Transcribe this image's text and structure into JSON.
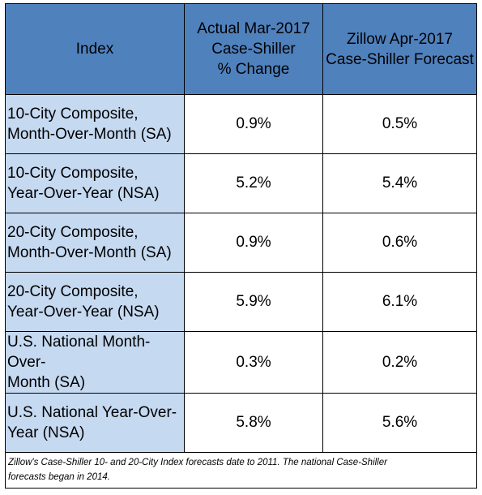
{
  "table": {
    "headers": {
      "index": "Index",
      "actual": [
        "Actual Mar-2017",
        "Case-Shiller",
        "% Change"
      ],
      "forecast": [
        "Zillow Apr-2017",
        "Case-Shiller Forecast"
      ]
    },
    "rows": [
      {
        "index": [
          "10-City Composite,",
          "Month-Over-Month (SA)"
        ],
        "actual": "0.9%",
        "forecast": "0.5%"
      },
      {
        "index": [
          "10-City Composite,",
          "Year-Over-Year (NSA)"
        ],
        "actual": "5.2%",
        "forecast": "5.4%"
      },
      {
        "index": [
          "20-City Composite,",
          "Month-Over-Month (SA)"
        ],
        "actual": "0.9%",
        "forecast": "0.6%"
      },
      {
        "index": [
          "20-City Composite,",
          "Year-Over-Year (NSA)"
        ],
        "actual": "5.9%",
        "forecast": "6.1%"
      },
      {
        "index": [
          "U.S. National Month-Over-",
          "Month (SA)"
        ],
        "actual": "0.3%",
        "forecast": "0.2%"
      },
      {
        "index": [
          "U.S. National Year-Over-",
          "Year (NSA)"
        ],
        "actual": "5.8%",
        "forecast": "5.6%"
      }
    ],
    "footnote": [
      "Zillow's Case-Shiller 10- and 20-City Index forecasts date to 2011.  The national Case-Shiller",
      "forecasts began in 2014."
    ]
  },
  "colors": {
    "header_bg": "#4f81bd",
    "index_col_bg": "#c5d9f1",
    "border": "#000000"
  }
}
